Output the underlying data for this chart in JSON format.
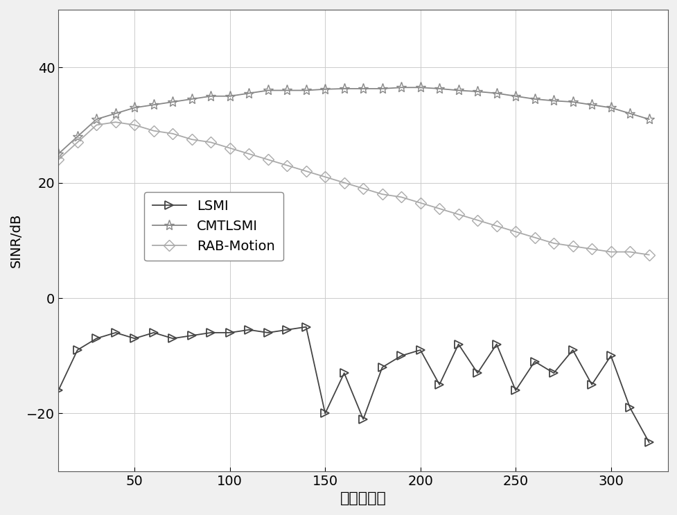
{
  "title": "",
  "xlabel": "采样快拍数",
  "ylabel": "SINR/dB",
  "xlim": [
    10,
    330
  ],
  "ylim": [
    -30,
    50
  ],
  "xticks": [
    50,
    100,
    150,
    200,
    250,
    300
  ],
  "yticks": [
    -20,
    0,
    20,
    40
  ],
  "grid": true,
  "fig_facecolor": "#f0f0f0",
  "ax_facecolor": "#ffffff",
  "lsmi_color": "#444444",
  "cmtlsmi_color": "#888888",
  "rab_color": "#aaaaaa",
  "legend_labels": [
    "LSMI",
    "CMTLSMI",
    "RAB-Motion"
  ],
  "lsmi_x": [
    10,
    20,
    30,
    40,
    50,
    60,
    70,
    80,
    90,
    100,
    110,
    120,
    130,
    140,
    150,
    160,
    170,
    180,
    190,
    200,
    210,
    220,
    230,
    240,
    250,
    260,
    270,
    280,
    290,
    300,
    310,
    320
  ],
  "lsmi_y": [
    -16,
    -9,
    -7,
    -6,
    -7,
    -6,
    -7,
    -6.5,
    -6,
    -6,
    -5.5,
    -6,
    -5.5,
    -5,
    -20,
    -13,
    -21,
    -12,
    -10,
    -9,
    -15,
    -8,
    -13,
    -8,
    -16,
    -11,
    -13,
    -9,
    -15,
    -10,
    -19,
    -25
  ],
  "cmtlsmi_x": [
    10,
    20,
    30,
    40,
    50,
    60,
    70,
    80,
    90,
    100,
    110,
    120,
    130,
    140,
    150,
    160,
    170,
    180,
    190,
    200,
    210,
    220,
    230,
    240,
    250,
    260,
    270,
    280,
    290,
    300,
    310,
    320
  ],
  "cmtlsmi_y": [
    25,
    28,
    31,
    32,
    33,
    33.5,
    34,
    34.5,
    35,
    35,
    35.5,
    36,
    36,
    36,
    36.2,
    36.3,
    36.3,
    36.3,
    36.5,
    36.5,
    36.3,
    36,
    35.8,
    35.5,
    35,
    34.5,
    34.2,
    34,
    33.5,
    33,
    32,
    31
  ],
  "rab_x": [
    10,
    20,
    30,
    40,
    50,
    60,
    70,
    80,
    90,
    100,
    110,
    120,
    130,
    140,
    150,
    160,
    170,
    180,
    190,
    200,
    210,
    220,
    230,
    240,
    250,
    260,
    270,
    280,
    290,
    300,
    310,
    320
  ],
  "rab_y": [
    24,
    27,
    30,
    30.5,
    30,
    29,
    28.5,
    27.5,
    27,
    26,
    25,
    24,
    23,
    22,
    21,
    20,
    19,
    18,
    17.5,
    16.5,
    15.5,
    14.5,
    13.5,
    12.5,
    11.5,
    10.5,
    9.5,
    9,
    8.5,
    8,
    8,
    7.5
  ]
}
